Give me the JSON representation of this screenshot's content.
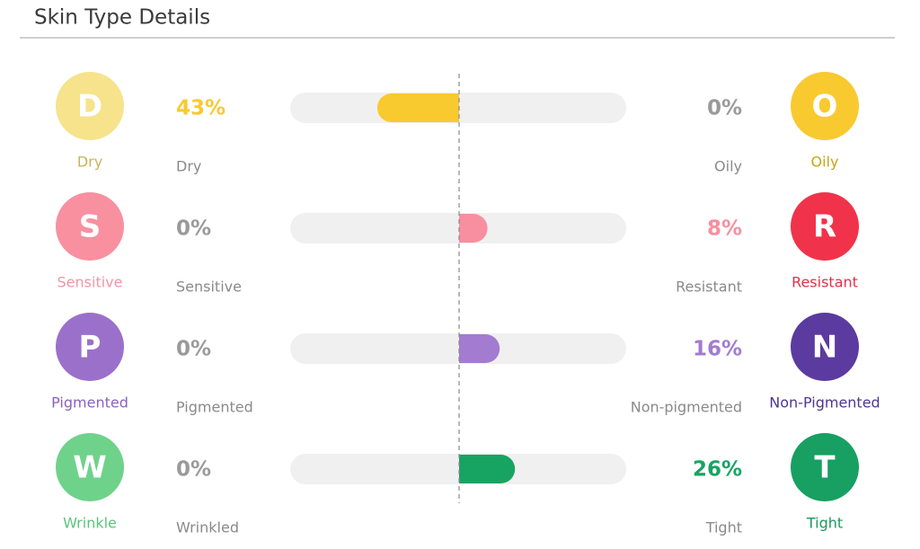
{
  "title": "Skin Type Details",
  "rows": [
    {
      "left": {
        "letter": "D",
        "name": "Dry",
        "label": "Dry",
        "value": 43,
        "value_label": "43%",
        "color": "#f9c930",
        "circle_color": "#f6e38c",
        "name_color": "#c9b35a"
      },
      "right": {
        "letter": "O",
        "name": "Oily",
        "label": "Oily",
        "value": 0,
        "value_label": "0%",
        "color": "#f9c930",
        "circle_color": "#f9c930",
        "name_color": "#c9a416"
      }
    },
    {
      "left": {
        "letter": "S",
        "name": "Sensitive",
        "label": "Sensitive",
        "value": 0,
        "value_label": "0%",
        "color": "#f78fa0",
        "circle_color": "#f890a0",
        "name_color": "#f095a6"
      },
      "right": {
        "letter": "R",
        "name": "Resistant",
        "label": "Resistant",
        "value": 8,
        "value_label": "8%",
        "color": "#f78fa0",
        "circle_color": "#f0334a",
        "name_color": "#dd3349"
      }
    },
    {
      "left": {
        "letter": "P",
        "name": "Pigmented",
        "label": "Pigmented",
        "value": 0,
        "value_label": "0%",
        "color": "#a37bd0",
        "circle_color": "#9b70ca",
        "name_color": "#8c60c0"
      },
      "right": {
        "letter": "N",
        "name": "Non-Pigmented",
        "label": "Non-pigmented",
        "value": 16,
        "value_label": "16%",
        "color": "#a37bd0",
        "circle_color": "#5b3b9f",
        "name_color": "#4f3692"
      }
    },
    {
      "left": {
        "letter": "W",
        "name": "Wrinkle",
        "label": "Wrinkled",
        "value": 0,
        "value_label": "0%",
        "color": "#17a463",
        "circle_color": "#6fd28b",
        "name_color": "#5cc47b"
      },
      "right": {
        "letter": "T",
        "name": "Tight",
        "label": "Tight",
        "value": 26,
        "value_label": "26%",
        "color": "#17a463",
        "circle_color": "#17a062",
        "name_color": "#1a9a5c"
      }
    }
  ]
}
